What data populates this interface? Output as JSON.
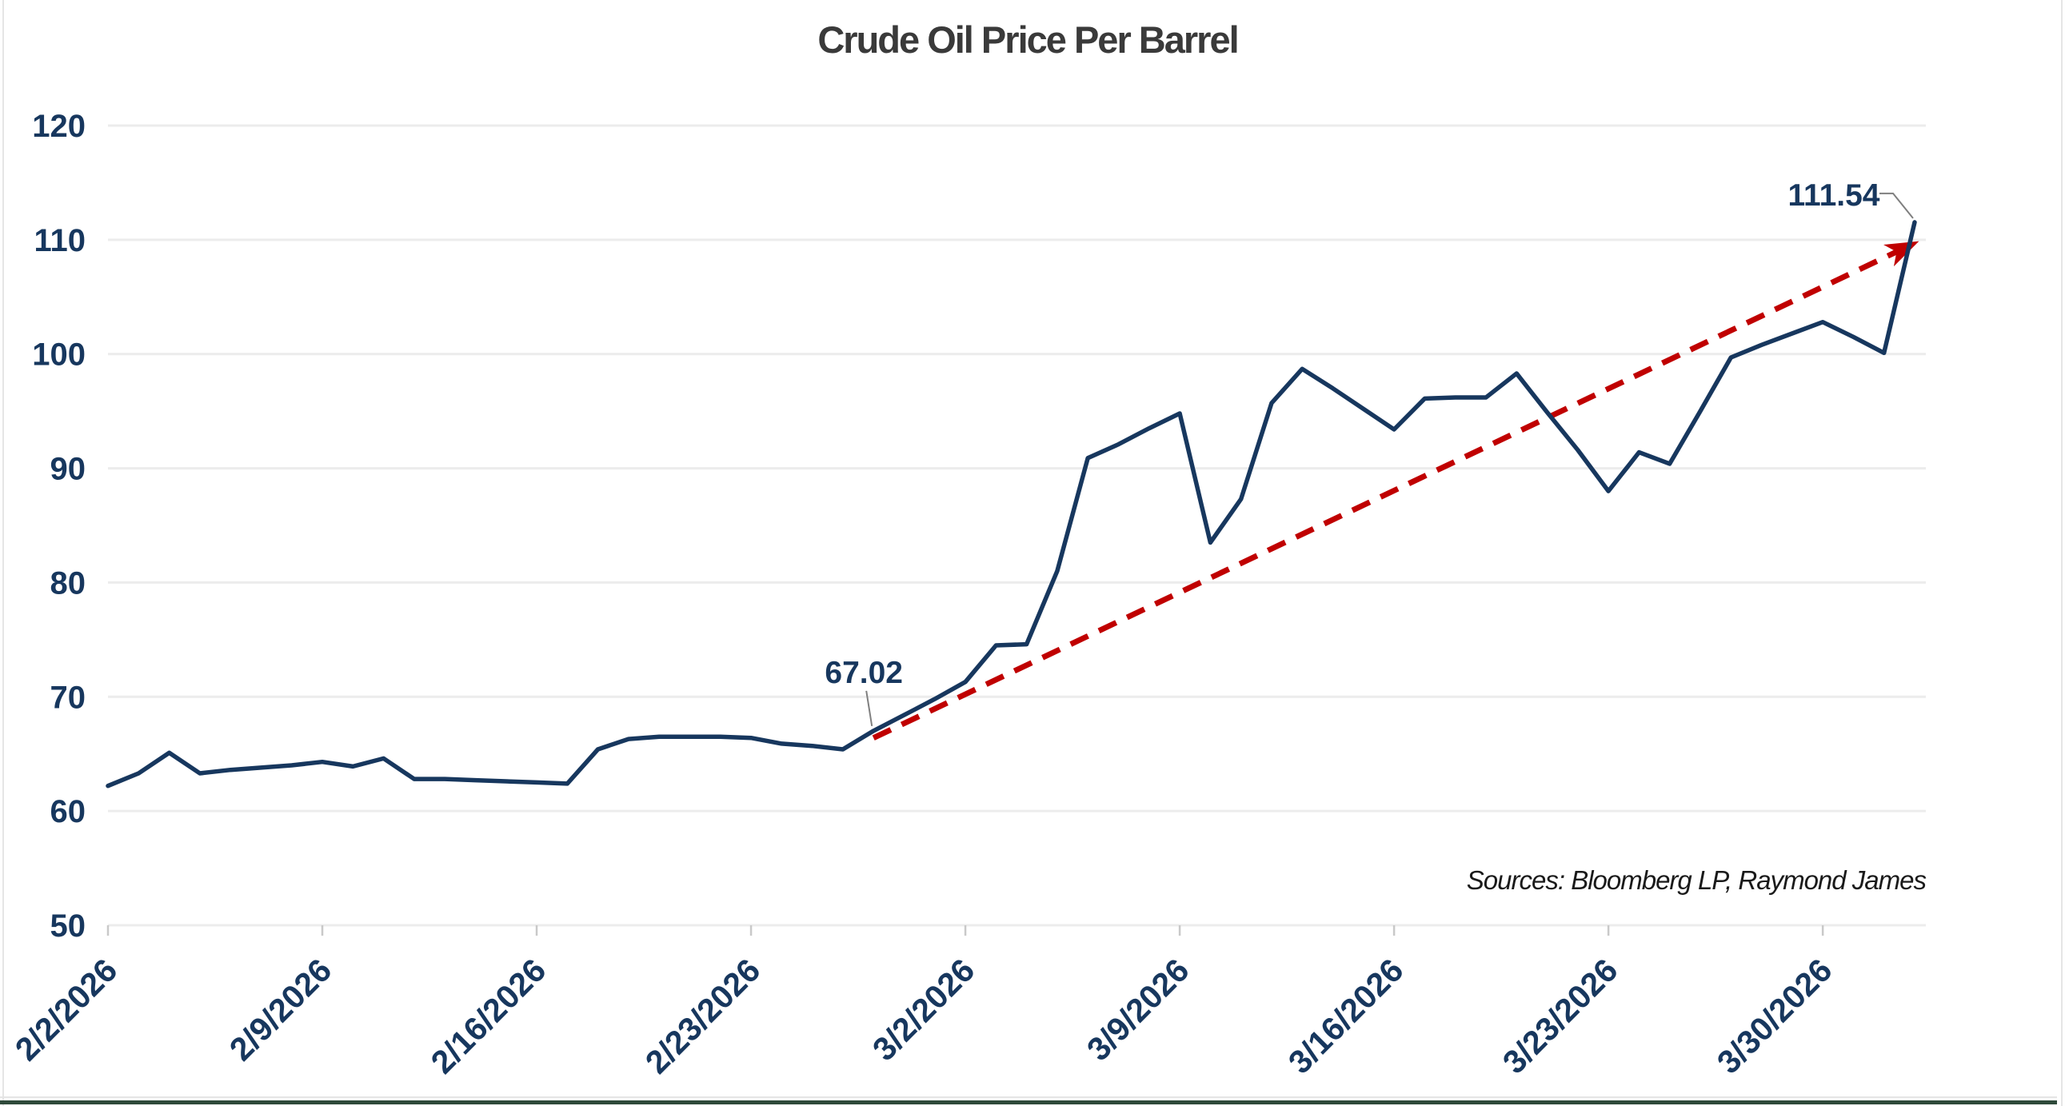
{
  "title": "Crude Oil Price Per Barrel",
  "sources_note": "Sources: Bloomberg LP, Raymond James",
  "colors": {
    "series_line": "#17375E",
    "trend_line": "#C00000",
    "gridline": "#ECECEC",
    "axis_labels": "#17375E",
    "title_text": "#3A3A3A",
    "leader_line": "#7F7F7F",
    "tick_mark": "#C9C9C9",
    "bottom_edge": "#2F4A3A",
    "side_edge": "#E5E5E5"
  },
  "y_axis": {
    "min": 50,
    "max": 120,
    "step": 10,
    "tick_labels": [
      "120",
      "110",
      "100",
      "90",
      "80",
      "70",
      "60",
      "50"
    ]
  },
  "x_axis": {
    "tick_labels": [
      "2/2/2026",
      "2/9/2026",
      "2/16/2026",
      "2/23/2026",
      "3/2/2026",
      "3/9/2026",
      "3/16/2026",
      "3/23/2026",
      "3/30/2026"
    ],
    "tick_every_n_points": 7
  },
  "annotations": {
    "start": {
      "label": "67.02",
      "point_index": 25
    },
    "end": {
      "label": "111.54",
      "point_index": 59
    }
  },
  "trend": {
    "style": "dashed-arrow",
    "from_index": 25,
    "from_value": 66.4,
    "to_index": 59,
    "to_value": 109.7
  },
  "chart_data": {
    "type": "line",
    "title": "Crude Oil Price Per Barrel",
    "xlabel": "",
    "ylabel": "",
    "ylim": [
      50,
      120
    ],
    "grid": "horizontal",
    "legend": "none",
    "x": [
      "2/2/2026",
      "2/3/2026",
      "2/4/2026",
      "2/5/2026",
      "2/6/2026",
      "2/7/2026",
      "2/8/2026",
      "2/9/2026",
      "2/10/2026",
      "2/11/2026",
      "2/12/2026",
      "2/13/2026",
      "2/14/2026",
      "2/15/2026",
      "2/16/2026",
      "2/17/2026",
      "2/18/2026",
      "2/19/2026",
      "2/20/2026",
      "2/21/2026",
      "2/22/2026",
      "2/23/2026",
      "2/24/2026",
      "2/25/2026",
      "2/26/2026",
      "2/27/2026",
      "2/28/2026",
      "3/1/2026",
      "3/2/2026",
      "3/3/2026",
      "3/4/2026",
      "3/5/2026",
      "3/6/2026",
      "3/7/2026",
      "3/8/2026",
      "3/9/2026",
      "3/10/2026",
      "3/11/2026",
      "3/12/2026",
      "3/13/2026",
      "3/14/2026",
      "3/15/2026",
      "3/16/2026",
      "3/17/2026",
      "3/18/2026",
      "3/19/2026",
      "3/20/2026",
      "3/21/2026",
      "3/22/2026",
      "3/23/2026",
      "3/24/2026",
      "3/25/2026",
      "3/26/2026",
      "3/27/2026",
      "3/28/2026",
      "3/29/2026",
      "3/30/2026",
      "3/31/2026",
      "4/1/2026",
      "4/2/2026"
    ],
    "values": [
      62.2,
      63.3,
      65.1,
      63.3,
      63.6,
      63.8,
      64.0,
      64.3,
      63.9,
      64.6,
      62.8,
      62.8,
      62.7,
      62.6,
      62.5,
      62.4,
      65.4,
      66.3,
      66.5,
      66.5,
      66.5,
      66.4,
      65.9,
      65.7,
      65.4,
      67.02,
      68.4,
      69.8,
      71.3,
      74.5,
      74.6,
      81.0,
      90.9,
      92.1,
      93.5,
      94.8,
      83.5,
      87.3,
      95.7,
      98.7,
      97.0,
      95.2,
      93.4,
      96.1,
      96.2,
      96.2,
      98.3,
      94.9,
      91.6,
      88.0,
      91.4,
      90.4,
      95.0,
      99.7,
      100.8,
      101.8,
      102.8,
      101.5,
      100.1,
      111.54
    ]
  }
}
